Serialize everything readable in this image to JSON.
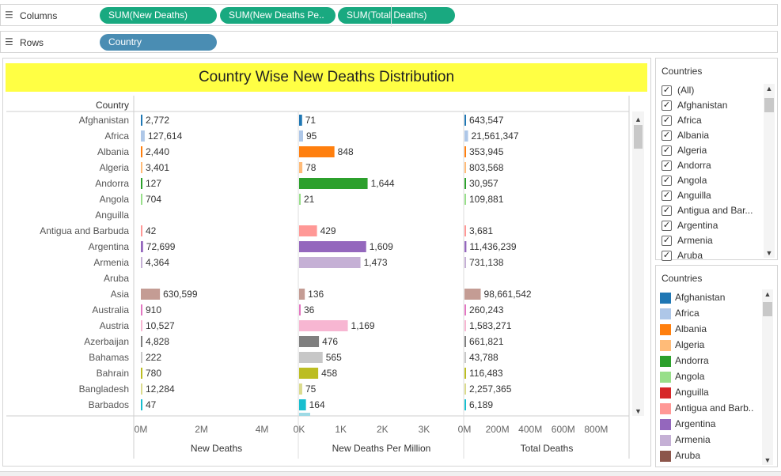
{
  "shelves": {
    "columns": {
      "label": "Columns",
      "icon": "columns-icon",
      "pills": [
        "SUM(New Deaths)",
        "SUM(New Deaths Pe..",
        "SUM(Total Deaths)"
      ]
    },
    "rows": {
      "label": "Rows",
      "icon": "rows-icon",
      "pills": [
        "Country"
      ]
    }
  },
  "chart_data": {
    "type": "bar",
    "title": "Country Wise New Deaths Distribution",
    "row_header": "Country",
    "categories": [
      "Afghanistan",
      "Africa",
      "Albania",
      "Algeria",
      "Andorra",
      "Angola",
      "Anguilla",
      "Antigua and Barbuda",
      "Argentina",
      "Armenia",
      "Aruba",
      "Asia",
      "Australia",
      "Austria",
      "Azerbaijan",
      "Bahamas",
      "Bahrain",
      "Bangladesh",
      "Barbados"
    ],
    "colors": [
      "#1f77b4",
      "#aec7e8",
      "#ff7f0e",
      "#ffbb78",
      "#2ca02c",
      "#98df8a",
      "#d62728",
      "#ff9896",
      "#9467bd",
      "#c5b0d5",
      "#8c564b",
      "#c49c94",
      "#e377c2",
      "#f7b6d2",
      "#7f7f7f",
      "#c7c7c7",
      "#bcbd22",
      "#dbdb8d",
      "#17becf"
    ],
    "series": [
      {
        "name": "New Deaths",
        "values": [
          2772,
          127614,
          2440,
          3401,
          127,
          704,
          null,
          42,
          72699,
          4364,
          null,
          630599,
          910,
          10527,
          4828,
          222,
          780,
          12284,
          47
        ],
        "labels": [
          "2,772",
          "127,614",
          "2,440",
          "3,401",
          "127",
          "704",
          "",
          "42",
          "72,699",
          "4,364",
          "",
          "630,599",
          "910",
          "10,527",
          "4,828",
          "222",
          "780",
          "12,284",
          "47"
        ],
        "axis_max": 5200000,
        "ticks": [
          {
            "v": 0,
            "t": "0M"
          },
          {
            "v": 2000000,
            "t": "2M"
          },
          {
            "v": 4000000,
            "t": "4M"
          }
        ]
      },
      {
        "name": "New Deaths Per Million",
        "values": [
          71,
          95,
          848,
          78,
          1644,
          21,
          null,
          429,
          1609,
          1473,
          null,
          136,
          36,
          1169,
          476,
          565,
          458,
          75,
          164
        ],
        "labels": [
          "71",
          "95",
          "848",
          "78",
          "1,644",
          "21",
          "",
          "429",
          "1,609",
          "1,473",
          "",
          "136",
          "36",
          "1,169",
          "476",
          "565",
          "458",
          "75",
          "164"
        ],
        "axis_max": 3950,
        "ticks": [
          {
            "v": 0,
            "t": "0K"
          },
          {
            "v": 1000,
            "t": "1K"
          },
          {
            "v": 2000,
            "t": "2K"
          },
          {
            "v": 3000,
            "t": "3K"
          }
        ]
      },
      {
        "name": "Total Deaths",
        "values": [
          643547,
          21561347,
          353945,
          803568,
          30957,
          109881,
          null,
          3681,
          11436239,
          731138,
          null,
          98661542,
          260243,
          1583271,
          661821,
          43788,
          116483,
          2257365,
          6189
        ],
        "labels": [
          "643,547",
          "21,561,347",
          "353,945",
          "803,568",
          "30,957",
          "109,881",
          "",
          "3,681",
          "11,436,239",
          "731,138",
          "",
          "98,661,542",
          "260,243",
          "1,583,271",
          "661,821",
          "43,788",
          "116,483",
          "2,257,365",
          "6,189"
        ],
        "axis_max": 1000000000,
        "ticks": [
          {
            "v": 0,
            "t": "0M"
          },
          {
            "v": 200000000,
            "t": "200M"
          },
          {
            "v": 400000000,
            "t": "400M"
          },
          {
            "v": 600000000,
            "t": "600M"
          },
          {
            "v": 800000000,
            "t": "800M"
          }
        ]
      }
    ],
    "grid": false,
    "legend": "right"
  },
  "filter": {
    "title": "Countries",
    "items": [
      "(All)",
      "Afghanistan",
      "Africa",
      "Albania",
      "Algeria",
      "Andorra",
      "Angola",
      "Anguilla",
      "Antigua and Bar...",
      "Argentina",
      "Armenia",
      "Aruba"
    ],
    "check": "✓"
  },
  "legend": {
    "title": "Countries",
    "items": [
      {
        "label": "Afghanistan",
        "color": "#1f77b4"
      },
      {
        "label": "Africa",
        "color": "#aec7e8"
      },
      {
        "label": "Albania",
        "color": "#ff7f0e"
      },
      {
        "label": "Algeria",
        "color": "#ffbb78"
      },
      {
        "label": "Andorra",
        "color": "#2ca02c"
      },
      {
        "label": "Angola",
        "color": "#98df8a"
      },
      {
        "label": "Anguilla",
        "color": "#d62728"
      },
      {
        "label": "Antigua and Barb..",
        "color": "#ff9896"
      },
      {
        "label": "Argentina",
        "color": "#9467bd"
      },
      {
        "label": "Armenia",
        "color": "#c5b0d5"
      },
      {
        "label": "Aruba",
        "color": "#8c564b"
      }
    ]
  }
}
